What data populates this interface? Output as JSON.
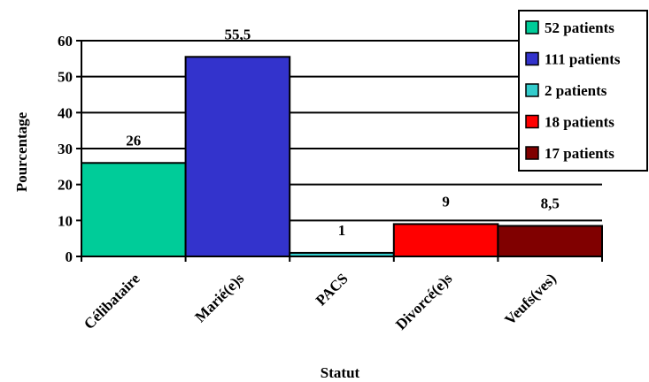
{
  "chart_data": {
    "type": "bar",
    "title": "",
    "xlabel": "Statut",
    "ylabel": "Pourcentage",
    "ylim": [
      0,
      60
    ],
    "yticks": [
      0,
      10,
      20,
      30,
      40,
      50,
      60
    ],
    "grid": true,
    "legend_position": "top-right",
    "categories": [
      "Célibataire",
      "Marié(e)s",
      "PACS",
      "Divorcé(e)s",
      "Veufs(ves)"
    ],
    "values": [
      26,
      55.5,
      1,
      9,
      8.5
    ],
    "data_labels": [
      "26",
      "55,5",
      "1",
      "9",
      "8,5"
    ],
    "colors": [
      "#00CC99",
      "#3333CC",
      "#33CCCC",
      "#FF0000",
      "#800000"
    ],
    "legend": [
      "52 patients",
      "111 patients",
      "2 patients",
      "18 patients",
      "17 patients"
    ]
  }
}
